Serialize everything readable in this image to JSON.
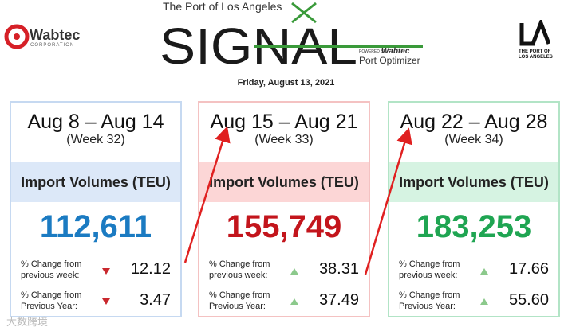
{
  "wabtec": {
    "name": "Wabtec",
    "subtitle": "CORPORATION"
  },
  "banner": {
    "top": "The Port of Los Angeles",
    "logo": "SIGNAL",
    "powered_by": "POWERED BY",
    "brand": "Wabtec",
    "product": "Port Optimizer"
  },
  "la_logo": {
    "text": "THE PORT OF LOS ANGELES"
  },
  "date": "Friday, August 13, 2021",
  "cards": [
    {
      "range": "Aug 8 – Aug 14",
      "week": "(Week 32)",
      "heading": "Import Volumes (TEU)",
      "value": "112,611",
      "rows": [
        {
          "label": "% Change from previous week:",
          "value": "12.12"
        },
        {
          "label": "% Change from Previous Year:",
          "value": "3.47"
        }
      ]
    },
    {
      "range": "Aug 15 – Aug 21",
      "week": "(Week 33)",
      "heading": "Import Volumes (TEU)",
      "value": "155,749",
      "rows": [
        {
          "label": "% Change from previous week:",
          "value": "38.31"
        },
        {
          "label": "% Change from Previous Year:",
          "value": "37.49"
        }
      ]
    },
    {
      "range": "Aug 22 – Aug 28",
      "week": "(Week 34)",
      "heading": "Import Volumes (TEU)",
      "value": "183,253",
      "rows": [
        {
          "label": "% Change from previous week:",
          "value": "17.66"
        },
        {
          "label": "% Change from Previous Year:",
          "value": "55.60"
        }
      ]
    }
  ],
  "watermark": "大数跨境"
}
